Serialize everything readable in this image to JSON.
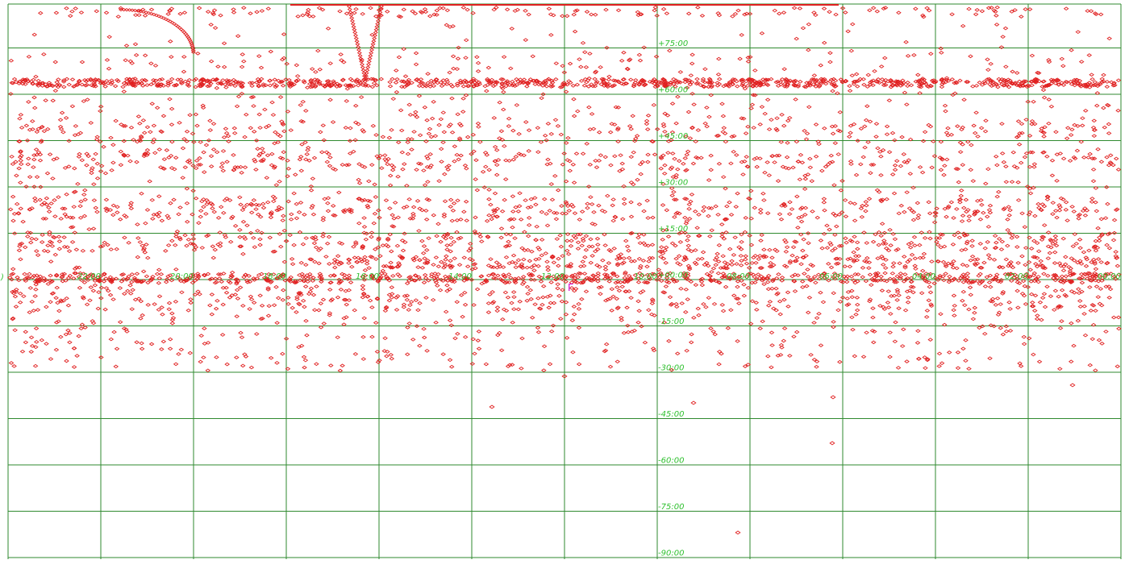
{
  "map": {
    "projection": "equirectangular",
    "ra_axis": {
      "direction": "decreasing-left-to-right",
      "range_hours": [
        24,
        0
      ],
      "step_hours": 2
    },
    "dec_axis": {
      "range_degrees": [
        -90,
        90
      ],
      "step_degrees": 15
    },
    "colors": {
      "background": "#ffffff",
      "grid": "#2f8a2f",
      "grid_labels": "#2ec02e",
      "objects": "#e02020",
      "marker": "#d000d0"
    },
    "object_symbol": "diamond-outline",
    "object_clusters": [
      {
        "name": "dec-60-band",
        "dec": 60
      },
      {
        "name": "equator-band",
        "dec": 0
      },
      {
        "name": "dec+40-band",
        "dec": 40
      },
      {
        "name": "dec+30-band",
        "dec": 30
      },
      {
        "name": "dec+20-band",
        "dec": 20
      },
      {
        "name": "dec-10-band",
        "dec": -10
      }
    ]
  },
  "ra_labels": [
    "22:00",
    "20:00",
    "18:00",
    "16:00",
    "14:00",
    "12:00",
    "10:00",
    "08:00",
    "06:00",
    "04:00",
    "02:00",
    "00:00"
  ],
  "dec_labels": [
    "+75:00",
    "+60:00",
    "+45:00",
    "+30:00",
    "+15:00",
    "+00:00",
    "-15:00",
    "-30:00",
    "-45:00",
    "-60:00",
    "-75:00",
    "-90:00"
  ],
  "markers": {
    "equator_marker": "Γ"
  },
  "edge_fragment": ")"
}
